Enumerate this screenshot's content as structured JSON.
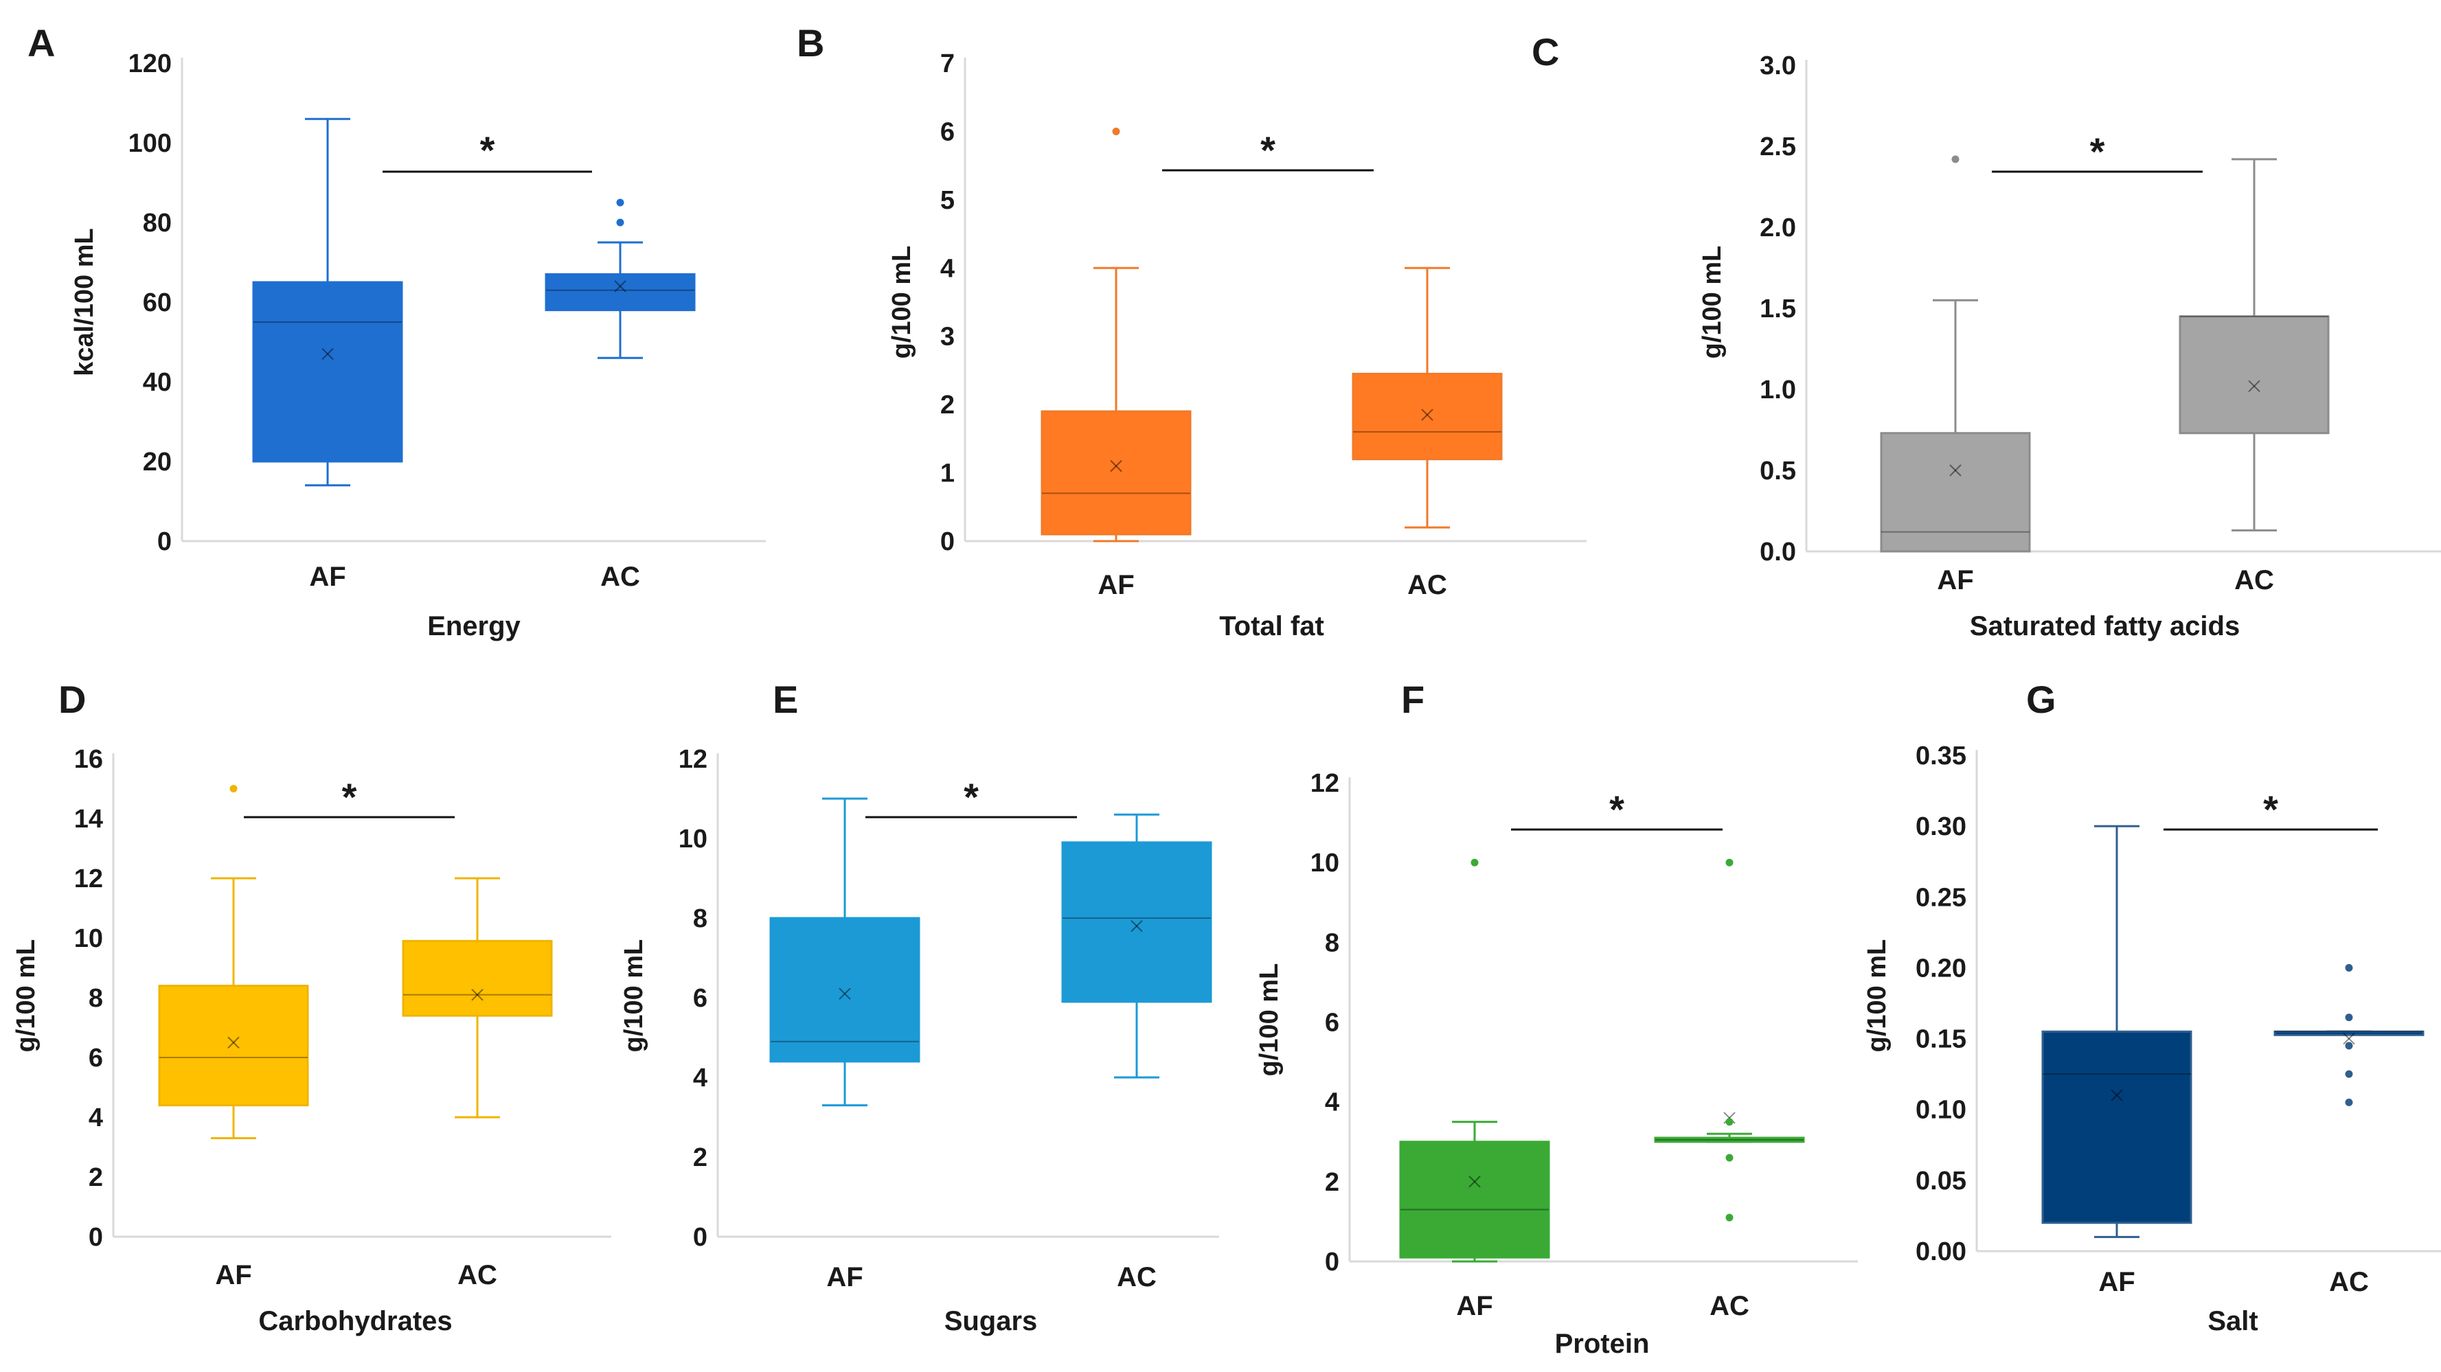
{
  "chart_data": [
    {
      "panel": "A",
      "type": "box",
      "title": "",
      "xlabel": "Energy",
      "ylabel": "kcal/100 mL",
      "color": "#1f6fd0",
      "stroke": "#1f6fd0",
      "ylim": [
        0,
        120
      ],
      "yticks": [
        "0",
        "20",
        "40",
        "60",
        "80",
        "100",
        "120"
      ],
      "ytick_values": [
        0,
        20,
        40,
        60,
        80,
        100,
        120
      ],
      "categories": [
        "AF",
        "AC"
      ],
      "boxes": [
        {
          "min": 14,
          "q1": 20,
          "median": 55,
          "q3": 65,
          "max": 106,
          "mean": 47,
          "outliers": []
        },
        {
          "min": 46,
          "q1": 58,
          "median": 63,
          "q3": 67,
          "max": 75,
          "mean": 64,
          "outliers": [
            80,
            85
          ]
        }
      ],
      "significance": "*"
    },
    {
      "panel": "B",
      "type": "box",
      "title": "",
      "xlabel": "Total fat",
      "ylabel": "g/100 mL",
      "color": "#ff7a22",
      "stroke": "#f07a2a",
      "ylim": [
        0,
        7
      ],
      "yticks": [
        "0",
        "1",
        "2",
        "3",
        "4",
        "5",
        "6",
        "7"
      ],
      "ytick_values": [
        0,
        1,
        2,
        3,
        4,
        5,
        6,
        7
      ],
      "categories": [
        "AF",
        "AC"
      ],
      "boxes": [
        {
          "min": 0,
          "q1": 0.1,
          "median": 0.7,
          "q3": 1.9,
          "max": 4,
          "mean": 1.1,
          "outliers": [
            6
          ]
        },
        {
          "min": 0.2,
          "q1": 1.2,
          "median": 1.6,
          "q3": 2.45,
          "max": 4,
          "mean": 1.85,
          "outliers": []
        }
      ],
      "significance": "*"
    },
    {
      "panel": "C",
      "type": "box",
      "title": "",
      "xlabel": "Saturated fatty acids",
      "ylabel": "g/100 mL",
      "color": "#a5a5a5",
      "stroke": "#8c8c8c",
      "ylim": [
        0,
        3
      ],
      "yticks": [
        "0.0",
        "0.5",
        "1.0",
        "1.5",
        "2.0",
        "2.5",
        "3.0"
      ],
      "ytick_values": [
        0,
        0.5,
        1,
        1.5,
        2,
        2.5,
        3
      ],
      "categories": [
        "AF",
        "AC"
      ],
      "boxes": [
        {
          "min": 0,
          "q1": 0,
          "median": 0.12,
          "q3": 0.73,
          "max": 1.55,
          "mean": 0.5,
          "outliers": [
            2.42
          ]
        },
        {
          "min": 0.13,
          "q1": 0.73,
          "median": 1.45,
          "q3": 1.45,
          "max": 2.42,
          "mean": 1.02,
          "outliers": []
        }
      ],
      "significance": "*"
    },
    {
      "panel": "D",
      "type": "box",
      "title": "",
      "xlabel": "Carbohydrates",
      "ylabel": "g/100 mL",
      "color": "#ffc000",
      "stroke": "#f0b400",
      "ylim": [
        0,
        16
      ],
      "yticks": [
        "0",
        "2",
        "4",
        "6",
        "8",
        "10",
        "12",
        "14",
        "16"
      ],
      "ytick_values": [
        0,
        2,
        4,
        6,
        8,
        10,
        12,
        14,
        16
      ],
      "categories": [
        "AF",
        "AC"
      ],
      "boxes": [
        {
          "min": 3.3,
          "q1": 4.4,
          "median": 6,
          "q3": 8.4,
          "max": 12,
          "mean": 6.5,
          "outliers": [
            15
          ]
        },
        {
          "min": 4,
          "q1": 7.4,
          "median": 8.1,
          "q3": 9.9,
          "max": 12,
          "mean": 8.1,
          "outliers": []
        }
      ],
      "significance": "*"
    },
    {
      "panel": "E",
      "type": "box",
      "title": "",
      "xlabel": "Sugars",
      "ylabel": "g/100 mL",
      "color": "#1c9ad6",
      "stroke": "#1c9ad6",
      "ylim": [
        0,
        12
      ],
      "yticks": [
        "0",
        "2",
        "4",
        "6",
        "8",
        "10",
        "12"
      ],
      "ytick_values": [
        0,
        2,
        4,
        6,
        8,
        10,
        12
      ],
      "categories": [
        "AF",
        "AC"
      ],
      "boxes": [
        {
          "min": 3.3,
          "q1": 4.4,
          "median": 4.9,
          "q3": 8,
          "max": 11,
          "mean": 6.1,
          "outliers": []
        },
        {
          "min": 4,
          "q1": 5.9,
          "median": 8,
          "q3": 9.9,
          "max": 10.6,
          "mean": 7.8,
          "outliers": []
        }
      ],
      "significance": "*"
    },
    {
      "panel": "F",
      "type": "box",
      "title": "",
      "xlabel": "Protein",
      "ylabel": "g/100 mL",
      "color": "#3aaa35",
      "stroke": "#3aaa35",
      "ylim": [
        0,
        12
      ],
      "yticks": [
        "0",
        "2",
        "4",
        "6",
        "8",
        "10",
        "12"
      ],
      "ytick_values": [
        0,
        2,
        4,
        6,
        8,
        10,
        12
      ],
      "categories": [
        "AF",
        "AC"
      ],
      "boxes": [
        {
          "min": 0,
          "q1": 0.1,
          "median": 1.3,
          "q3": 3,
          "max": 3.5,
          "mean": 2,
          "outliers": [
            10
          ]
        },
        {
          "min": 3,
          "q1": 3,
          "median": 3.05,
          "q3": 3.1,
          "max": 3.2,
          "mean": 3.6,
          "outliers": [
            10,
            3.5,
            2.6,
            1.1
          ]
        }
      ],
      "significance": "*"
    },
    {
      "panel": "G",
      "type": "box",
      "title": "",
      "xlabel": "Salt",
      "ylabel": "g/100 mL",
      "color": "#003f7a",
      "stroke": "#2f5f8f",
      "ylim": [
        0,
        0.35
      ],
      "yticks": [
        "0.00",
        "0.05",
        "0.10",
        "0.15",
        "0.20",
        "0.25",
        "0.30",
        "0.35"
      ],
      "ytick_values": [
        0,
        0.05,
        0.1,
        0.15,
        0.2,
        0.25,
        0.3,
        0.35
      ],
      "categories": [
        "AF",
        "AC"
      ],
      "boxes": [
        {
          "min": 0.01,
          "q1": 0.02,
          "median": 0.125,
          "q3": 0.155,
          "max": 0.3,
          "mean": 0.11,
          "outliers": []
        },
        {
          "min": 0.155,
          "q1": 0.155,
          "median": 0.155,
          "q3": 0.155,
          "max": 0.155,
          "mean": 0.15,
          "outliers": [
            0.2,
            0.165,
            0.145,
            0.125,
            0.105
          ]
        }
      ],
      "significance": "*"
    }
  ]
}
